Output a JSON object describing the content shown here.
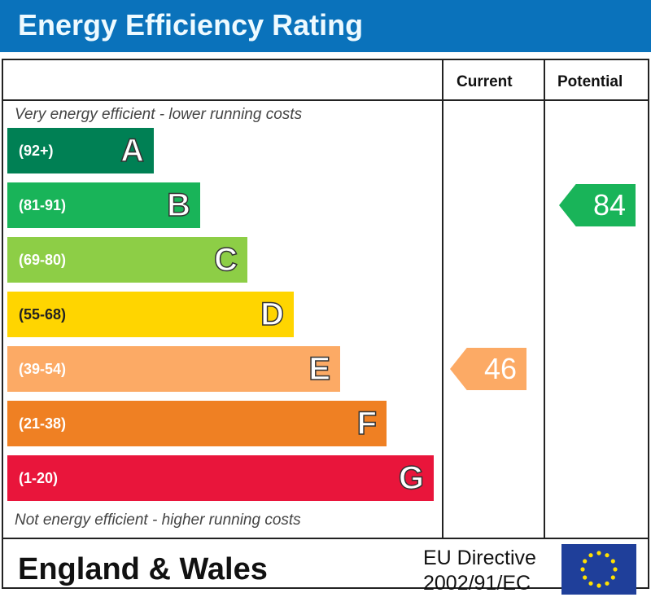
{
  "header": {
    "title": "Energy Efficiency Rating"
  },
  "columns": {
    "current": "Current",
    "potential": "Potential"
  },
  "notes": {
    "top": "Very energy efficient - lower running costs",
    "bottom": "Not energy efficient - higher running costs"
  },
  "footer": {
    "region": "England & Wales",
    "directive_line1": "EU Directive",
    "directive_line2": "2002/91/EC",
    "flag_icon": "eu-flag-icon"
  },
  "chart_data": {
    "type": "bar",
    "categories": [
      "A",
      "B",
      "C",
      "D",
      "E",
      "F",
      "G"
    ],
    "ranges": [
      "(92+)",
      "(81-91)",
      "(69-80)",
      "(55-68)",
      "(39-54)",
      "(21-38)",
      "(1-20)"
    ],
    "colors": [
      "#008054",
      "#19b459",
      "#8dce46",
      "#ffd500",
      "#fcaa65",
      "#ef8023",
      "#e9153b"
    ],
    "current": {
      "value": "46",
      "band": "E",
      "color": "#fcaa65"
    },
    "potential": {
      "value": "84",
      "band": "B",
      "color": "#19b459"
    }
  }
}
